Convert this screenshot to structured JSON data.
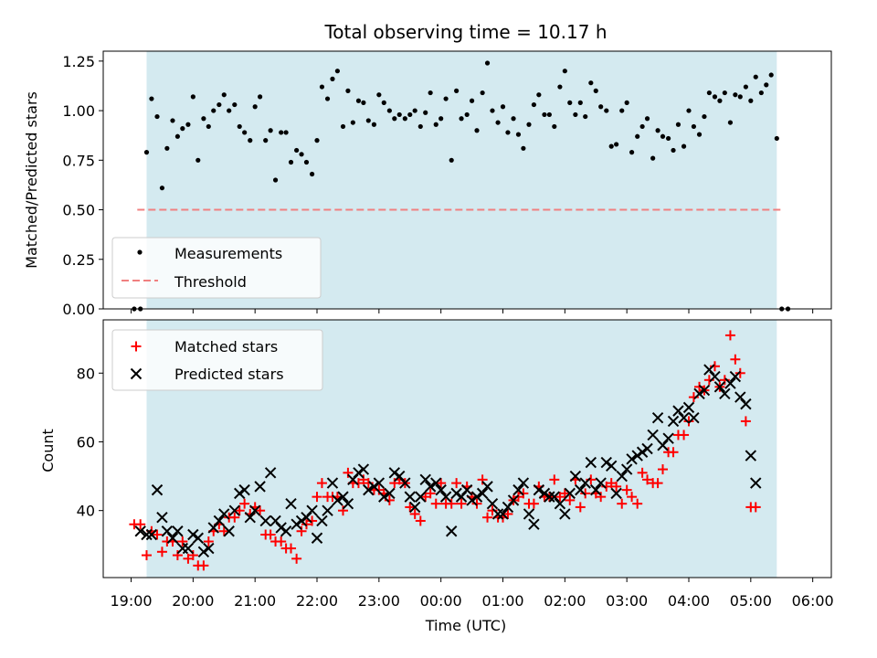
{
  "chart_data": {
    "type": "scatter",
    "title": "Total observing time = 10.17 h",
    "xlabel": "Time (UTC)",
    "x_ticks": [
      "19:00",
      "20:00",
      "21:00",
      "22:00",
      "23:00",
      "00:00",
      "01:00",
      "02:00",
      "03:00",
      "04:00",
      "05:00",
      "06:00"
    ],
    "observing_window_hours": [
      0.25,
      10.42
    ],
    "colors": {
      "observing_band": "#d4eaf0",
      "measurements": "#000000",
      "threshold": "#f08080",
      "matched": "#ff0000",
      "predicted": "#000000"
    },
    "top": {
      "ylabel": "Matched/Predicted stars",
      "ylim": [
        0,
        1.3
      ],
      "y_ticks": [
        "0.00",
        "0.25",
        "0.50",
        "0.75",
        "1.00",
        "1.25"
      ],
      "threshold": 0.5,
      "threshold_x_range": [
        0.1,
        10.5
      ],
      "legend": [
        "Measurements",
        "Threshold"
      ],
      "legend_position": "lower-left",
      "measurements_x": [
        0.05,
        0.15,
        0.25,
        0.33,
        0.42,
        0.5,
        0.58,
        0.67,
        0.75,
        0.83,
        0.92,
        1.0,
        1.08,
        1.17,
        1.25,
        1.33,
        1.42,
        1.5,
        1.58,
        1.67,
        1.75,
        1.83,
        1.92,
        2.0,
        2.08,
        2.17,
        2.25,
        2.33,
        2.42,
        2.5,
        2.58,
        2.67,
        2.75,
        2.83,
        2.92,
        3.0,
        3.08,
        3.17,
        3.25,
        3.33,
        3.42,
        3.5,
        3.58,
        3.67,
        3.75,
        3.83,
        3.92,
        4.0,
        4.08,
        4.17,
        4.25,
        4.33,
        4.42,
        4.5,
        4.58,
        4.67,
        4.75,
        4.83,
        4.92,
        5.0,
        5.08,
        5.17,
        5.25,
        5.33,
        5.42,
        5.5,
        5.58,
        5.67,
        5.75,
        5.83,
        5.92,
        6.0,
        6.08,
        6.17,
        6.25,
        6.33,
        6.42,
        6.5,
        6.58,
        6.67,
        6.75,
        6.83,
        6.92,
        7.0,
        7.08,
        7.17,
        7.25,
        7.33,
        7.42,
        7.5,
        7.58,
        7.67,
        7.75,
        7.83,
        7.92,
        8.0,
        8.08,
        8.17,
        8.25,
        8.33,
        8.42,
        8.5,
        8.58,
        8.67,
        8.75,
        8.83,
        8.92,
        9.0,
        9.08,
        9.17,
        9.25,
        9.33,
        9.42,
        9.5,
        9.58,
        9.67,
        9.75,
        9.83,
        9.92,
        10.0,
        10.08,
        10.17,
        10.25,
        10.33,
        10.42,
        10.5,
        10.6
      ],
      "measurements_y": [
        0.0,
        0.0,
        0.79,
        1.06,
        0.97,
        0.61,
        0.81,
        0.95,
        0.87,
        0.91,
        0.93,
        1.07,
        0.75,
        0.96,
        0.92,
        1.0,
        1.03,
        1.08,
        1.0,
        1.03,
        0.92,
        0.89,
        0.85,
        1.02,
        1.07,
        0.85,
        0.9,
        0.65,
        0.89,
        0.89,
        0.74,
        0.8,
        0.78,
        0.74,
        0.68,
        0.85,
        1.12,
        1.06,
        1.16,
        1.2,
        0.92,
        1.1,
        0.94,
        1.05,
        1.04,
        0.95,
        0.93,
        1.08,
        1.04,
        1.0,
        0.96,
        0.98,
        0.96,
        0.98,
        1.0,
        0.92,
        0.99,
        1.09,
        0.93,
        0.96,
        1.06,
        0.75,
        1.1,
        0.96,
        0.98,
        1.05,
        0.9,
        1.09,
        1.24,
        1.0,
        0.94,
        1.02,
        0.89,
        0.96,
        0.88,
        0.81,
        0.93,
        1.03,
        1.08,
        0.98,
        0.98,
        0.92,
        1.12,
        1.2,
        1.04,
        0.98,
        1.04,
        0.97,
        1.14,
        1.1,
        1.02,
        1.0,
        0.82,
        0.83,
        1.0,
        1.04,
        0.79,
        0.87,
        0.92,
        0.96,
        0.76,
        0.9,
        0.87,
        0.86,
        0.8,
        0.93,
        0.82,
        1.0,
        0.92,
        0.88,
        0.97,
        1.09,
        1.07,
        1.05,
        1.09,
        0.94,
        1.08,
        1.07,
        1.12,
        1.05,
        1.17,
        1.09,
        1.13,
        1.18,
        0.86,
        0.0,
        0.0
      ]
    },
    "bottom": {
      "ylabel": "Count",
      "ylim": [
        20.5,
        95.5
      ],
      "y_ticks": [
        "40",
        "60",
        "80"
      ],
      "legend": [
        "Matched stars",
        "Predicted stars"
      ],
      "legend_position": "upper-left",
      "x": [
        0.05,
        0.15,
        0.25,
        0.33,
        0.42,
        0.5,
        0.58,
        0.67,
        0.75,
        0.83,
        0.92,
        1.0,
        1.08,
        1.17,
        1.25,
        1.33,
        1.42,
        1.5,
        1.58,
        1.67,
        1.75,
        1.83,
        1.92,
        2.0,
        2.08,
        2.17,
        2.25,
        2.33,
        2.42,
        2.5,
        2.58,
        2.67,
        2.75,
        2.83,
        2.92,
        3.0,
        3.08,
        3.17,
        3.25,
        3.33,
        3.42,
        3.5,
        3.58,
        3.67,
        3.75,
        3.83,
        3.92,
        4.0,
        4.08,
        4.17,
        4.25,
        4.33,
        4.42,
        4.5,
        4.58,
        4.67,
        4.75,
        4.83,
        4.92,
        5.0,
        5.08,
        5.17,
        5.25,
        5.33,
        5.42,
        5.5,
        5.58,
        5.67,
        5.75,
        5.83,
        5.92,
        6.0,
        6.08,
        6.17,
        6.25,
        6.33,
        6.42,
        6.5,
        6.58,
        6.67,
        6.75,
        6.83,
        6.92,
        7.0,
        7.08,
        7.17,
        7.25,
        7.33,
        7.42,
        7.5,
        7.58,
        7.67,
        7.75,
        7.83,
        7.92,
        8.0,
        8.08,
        8.17,
        8.25,
        8.33,
        8.42,
        8.5,
        8.58,
        8.67,
        8.75,
        8.83,
        8.92,
        9.0,
        9.08,
        9.17,
        9.25,
        9.33,
        9.42,
        9.5,
        9.58,
        9.67,
        9.75,
        9.83,
        9.92,
        10.0,
        10.08,
        10.17,
        10.25,
        10.33,
        10.42,
        10.5,
        10.6
      ],
      "matched": [
        36,
        36,
        27,
        34,
        33,
        28,
        31,
        31,
        27,
        31,
        26,
        27,
        24,
        24,
        31,
        34,
        36,
        34,
        38,
        38,
        40,
        42,
        39,
        41,
        40,
        33,
        33,
        31,
        31,
        29,
        29,
        26,
        34,
        36,
        37,
        44,
        48,
        44,
        44,
        44,
        40,
        51,
        48,
        48,
        49,
        48,
        46,
        46,
        45,
        43,
        48,
        49,
        48,
        41,
        39,
        37,
        44,
        45,
        42,
        48,
        42,
        42,
        48,
        42,
        47,
        44,
        42,
        49,
        38,
        40,
        38,
        38,
        39,
        43,
        44,
        45,
        42,
        42,
        47,
        44,
        44,
        49,
        44,
        45,
        43,
        49,
        41,
        45,
        49,
        45,
        44,
        47,
        48,
        47,
        42,
        46,
        44,
        42,
        51,
        49,
        48,
        48,
        52,
        57,
        57,
        62,
        62,
        66,
        73,
        76,
        75,
        78,
        82,
        76,
        78,
        91,
        84,
        80,
        66,
        41,
        41
      ],
      "predicted": [
        null,
        34,
        33,
        33,
        46,
        38,
        34,
        32,
        34,
        29,
        29,
        33,
        32,
        28,
        29,
        35,
        37,
        39,
        34,
        40,
        45,
        46,
        38,
        40,
        47,
        37,
        51,
        37,
        35,
        34,
        42,
        36,
        37,
        38,
        40,
        32,
        37,
        40,
        48,
        43,
        44,
        42,
        49,
        51,
        52,
        46,
        47,
        48,
        44,
        45,
        51,
        50,
        48,
        44,
        41,
        44,
        49,
        47,
        48,
        46,
        44,
        34,
        45,
        44,
        46,
        43,
        44,
        45,
        47,
        42,
        39,
        39,
        41,
        43,
        46,
        48,
        39,
        36,
        46,
        45,
        44,
        44,
        42,
        39,
        45,
        50,
        46,
        48,
        54,
        46,
        48,
        54,
        53,
        45,
        50,
        52,
        55,
        56,
        57,
        58,
        62,
        67,
        59,
        61,
        66,
        69,
        67,
        70,
        67,
        74,
        75,
        81,
        79,
        76,
        74,
        77,
        79,
        73,
        71,
        56,
        48
      ]
    }
  }
}
